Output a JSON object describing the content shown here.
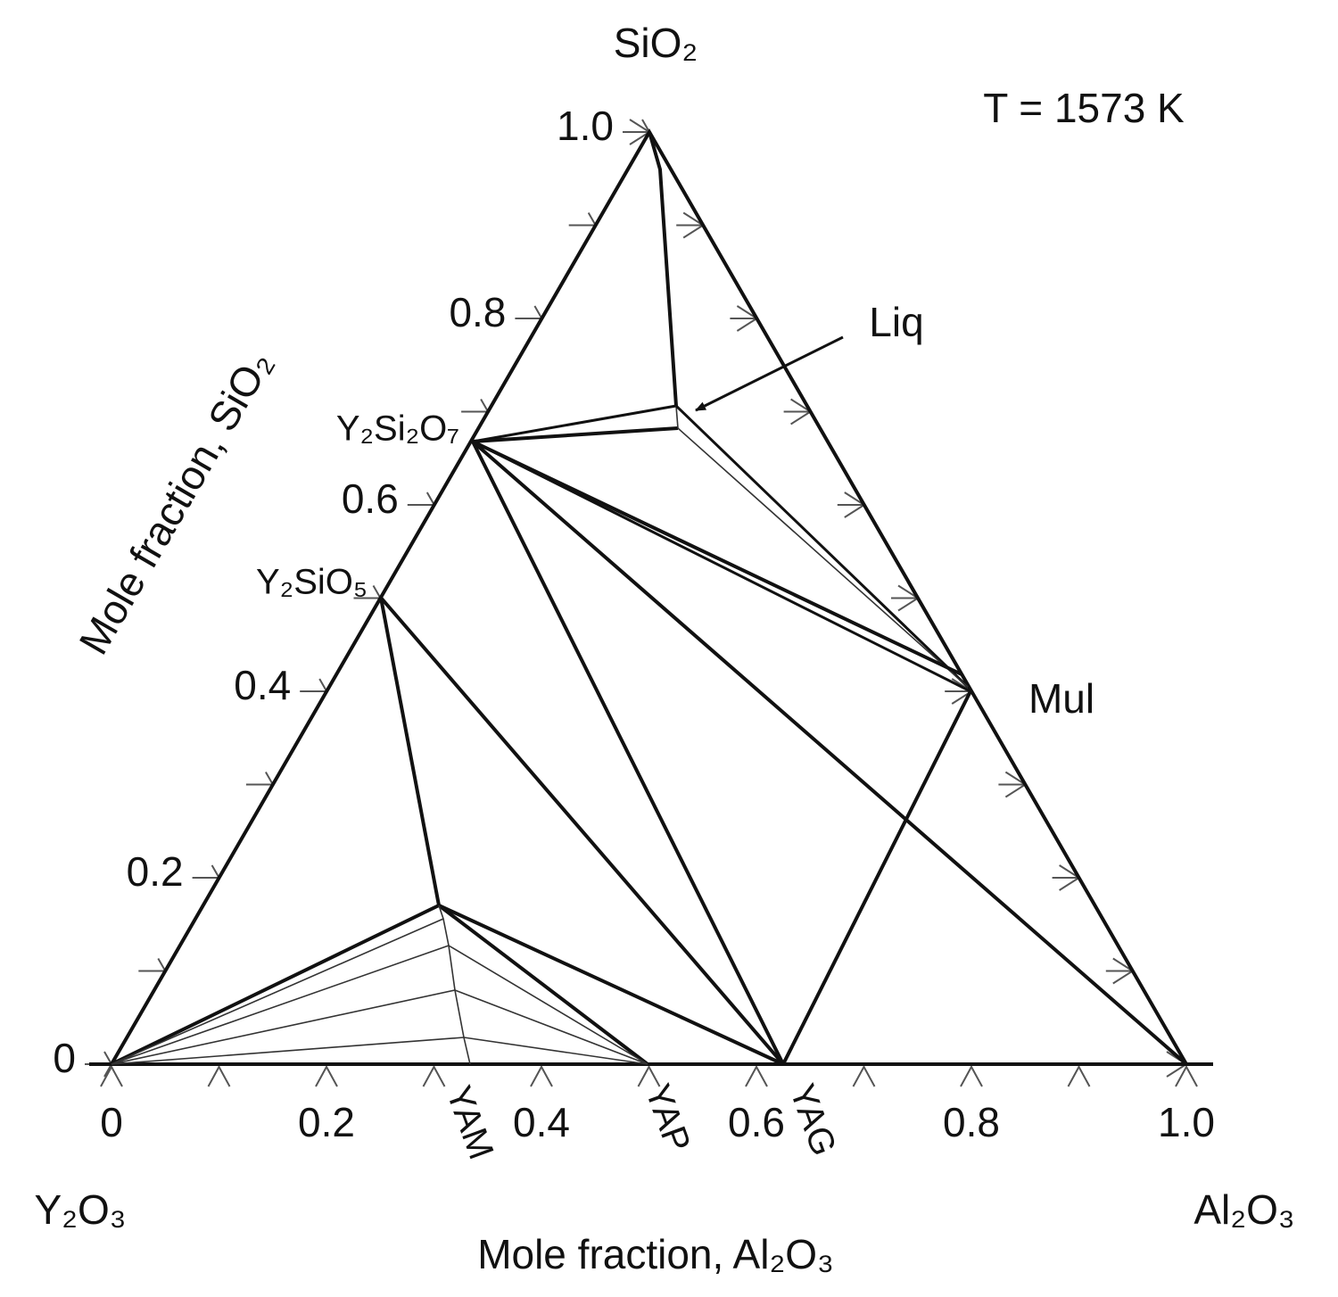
{
  "title": "T = 1573 K",
  "apex_labels": {
    "top": "SiO₂",
    "left": "Y₂O₃",
    "right": "Al₂O₃"
  },
  "x_axis": {
    "label": "Mole fraction, Al₂O₃",
    "ticks": [
      "0",
      "0.2",
      "0.4",
      "0.6",
      "0.8",
      "1.0"
    ]
  },
  "y_axis": {
    "label": "Mole fraction, SiO₂",
    "ticks": [
      "0",
      "0.2",
      "0.4",
      "0.6",
      "0.8",
      "1.0"
    ]
  },
  "phases": {
    "liquid": "Liq",
    "mullite": "Mul",
    "disilicate": "Y₂Si₂O₇",
    "monosilicate": "Y₂SiO₅",
    "yam": "YAM",
    "yap": "YAP",
    "yag": "YAG"
  }
}
